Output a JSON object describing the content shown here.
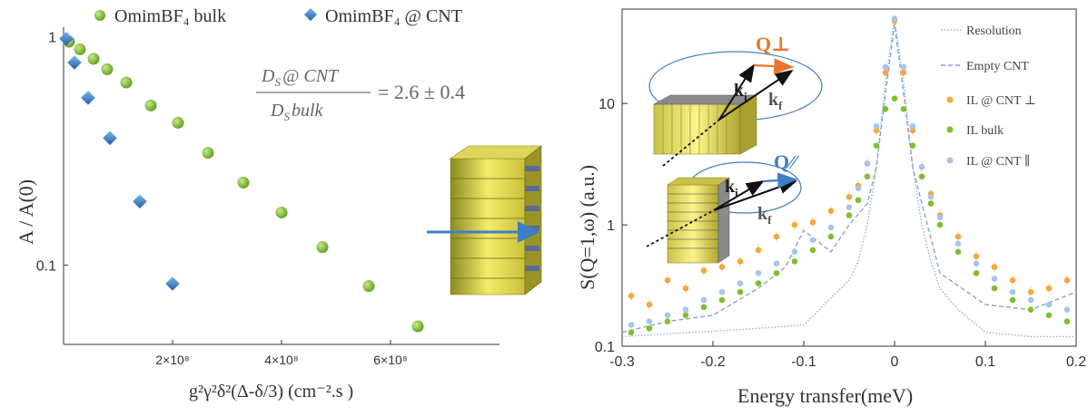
{
  "colors": {
    "bulk": "#7fbf2e",
    "cnt": "#2d7ac4",
    "perp": "#f2a93b",
    "par": "#a7c4ec",
    "resolution": "#9aaed4",
    "empty": "#8da2cf",
    "orange_arrow": "#e8762d",
    "blue_arrow": "#3f7ec4",
    "text_grey": "#555555"
  },
  "chart_data": [
    {
      "type": "scatter",
      "title": "",
      "xlabel": "g²γ²δ²(Δ-δ/3) (cm⁻².s )",
      "ylabel": "A / A(0)",
      "yscale": "log",
      "xlim": [
        0,
        800000000
      ],
      "ylim": [
        0.045,
        1.1
      ],
      "xticks": [
        200000000,
        400000000,
        600000000
      ],
      "xtick_labels": [
        "2×10⁸",
        "4×10⁸",
        "6×10⁸"
      ],
      "yticks": [
        1,
        0.1
      ],
      "ytick_labels": [
        "1",
        "0.1"
      ],
      "legend_position": "top",
      "series": [
        {
          "name": "OmimBF₄ bulk",
          "marker": "circle",
          "x": [
            10000000,
            30000000,
            55000000,
            80000000,
            115000000,
            160000000,
            210000000,
            265000000,
            330000000,
            400000000,
            475000000,
            560000000,
            650000000
          ],
          "y": [
            0.95,
            0.88,
            0.8,
            0.72,
            0.63,
            0.5,
            0.42,
            0.31,
            0.23,
            0.17,
            0.12,
            0.081,
            0.054
          ]
        },
        {
          "name": "OmimBF₄ @ CNT",
          "marker": "diamond",
          "x": [
            5000000,
            20000000,
            45000000,
            85000000,
            140000000,
            200000000
          ],
          "y": [
            0.98,
            0.77,
            0.54,
            0.36,
            0.19,
            0.083
          ]
        }
      ],
      "annotation": {
        "numerator_main": "D",
        "numerator_sub": "S",
        "numerator_rest": "@ CNT",
        "denominator_main": "D",
        "denominator_sub": "S",
        "denominator_rest": "bulk",
        "value": "= 2.6  ± 0.4"
      }
    },
    {
      "type": "line",
      "title": "",
      "xlabel": "Energy transfer(meV)",
      "ylabel": "S(Q=1,ω) (a.u.)",
      "yscale": "log",
      "xlim": [
        -0.3,
        0.2
      ],
      "ylim": [
        0.1,
        60
      ],
      "xticks": [
        -0.3,
        -0.2,
        -0.1,
        0,
        0.1,
        0.2
      ],
      "xtick_labels": [
        "-0.3",
        "-0.2",
        "-0.1",
        "0",
        "0.1",
        "0.2"
      ],
      "yticks": [
        0.1,
        1,
        10
      ],
      "ytick_labels": [
        "0.1",
        "1",
        "10"
      ],
      "legend_position": "top-right",
      "series": [
        {
          "name": "Resolution",
          "style": "dotted",
          "x": [
            -0.3,
            -0.15,
            -0.1,
            -0.07,
            -0.05,
            -0.04,
            -0.03,
            -0.02,
            -0.01,
            0,
            0.01,
            0.02,
            0.03,
            0.04,
            0.05,
            0.07,
            0.1,
            0.15,
            0.2
          ],
          "y": [
            0.12,
            0.14,
            0.15,
            0.25,
            0.35,
            0.5,
            1.0,
            3.0,
            15,
            50,
            15,
            3.0,
            1.0,
            0.5,
            0.3,
            0.2,
            0.13,
            0.12,
            0.12
          ]
        },
        {
          "name": "Empty CNT",
          "style": "dashed",
          "x": [
            -0.3,
            -0.25,
            -0.2,
            -0.15,
            -0.12,
            -0.1,
            -0.07,
            -0.05,
            -0.03,
            -0.02,
            -0.01,
            0,
            0.01,
            0.02,
            0.03,
            0.05,
            0.08,
            0.1,
            0.15,
            0.2
          ],
          "y": [
            0.13,
            0.16,
            0.18,
            0.3,
            0.45,
            0.9,
            0.6,
            1.0,
            1.5,
            3.0,
            12,
            45,
            12,
            3.0,
            1.5,
            0.4,
            0.28,
            0.22,
            0.2,
            0.28
          ]
        },
        {
          "name": "IL @ CNT ⊥",
          "marker": "circle",
          "x": [
            -0.29,
            -0.27,
            -0.25,
            -0.23,
            -0.21,
            -0.19,
            -0.17,
            -0.15,
            -0.13,
            -0.11,
            -0.09,
            -0.07,
            -0.05,
            -0.04,
            -0.03,
            -0.02,
            -0.01,
            0,
            0.01,
            0.02,
            0.03,
            0.04,
            0.05,
            0.07,
            0.09,
            0.11,
            0.13,
            0.15,
            0.17,
            0.19
          ],
          "y": [
            0.26,
            0.22,
            0.35,
            0.3,
            0.42,
            0.45,
            0.5,
            0.62,
            0.8,
            1.0,
            1.05,
            1.3,
            1.7,
            2.1,
            3.2,
            6.0,
            18,
            48,
            18,
            6.0,
            3.0,
            1.8,
            1.2,
            0.8,
            0.55,
            0.45,
            0.35,
            0.28,
            0.3,
            0.35
          ]
        },
        {
          "name": "IL bulk",
          "marker": "circle",
          "x": [
            -0.29,
            -0.27,
            -0.25,
            -0.23,
            -0.21,
            -0.19,
            -0.17,
            -0.15,
            -0.13,
            -0.11,
            -0.09,
            -0.07,
            -0.05,
            -0.04,
            -0.03,
            -0.02,
            -0.01,
            0,
            0.01,
            0.02,
            0.03,
            0.04,
            0.05,
            0.07,
            0.09,
            0.11,
            0.13,
            0.15,
            0.17,
            0.19
          ],
          "y": [
            0.13,
            0.14,
            0.16,
            0.18,
            0.21,
            0.24,
            0.28,
            0.33,
            0.4,
            0.5,
            0.62,
            0.8,
            1.2,
            1.6,
            2.5,
            4.5,
            9.0,
            11,
            9.0,
            4.5,
            2.5,
            1.5,
            1.0,
            0.6,
            0.4,
            0.3,
            0.24,
            0.2,
            0.18,
            0.16
          ]
        },
        {
          "name": "IL @ CNT ∥",
          "marker": "circle",
          "x": [
            -0.29,
            -0.27,
            -0.25,
            -0.23,
            -0.21,
            -0.19,
            -0.17,
            -0.15,
            -0.13,
            -0.11,
            -0.09,
            -0.07,
            -0.05,
            -0.04,
            -0.03,
            -0.02,
            -0.01,
            0,
            0.01,
            0.02,
            0.03,
            0.04,
            0.05,
            0.07,
            0.09,
            0.11,
            0.13,
            0.15,
            0.17,
            0.19
          ],
          "y": [
            0.15,
            0.16,
            0.18,
            0.2,
            0.24,
            0.28,
            0.33,
            0.4,
            0.48,
            0.6,
            0.75,
            0.95,
            1.4,
            2.0,
            3.2,
            6.5,
            20,
            50,
            20,
            6.5,
            3.0,
            1.7,
            1.15,
            0.7,
            0.48,
            0.36,
            0.28,
            0.24,
            0.22,
            0.2
          ]
        }
      ],
      "inset_labels": {
        "q_perp": "Q⊥",
        "q_par": "Q∕∕",
        "ki": "k",
        "ki_sub": "i",
        "kf": "k",
        "kf_sub": "f"
      }
    }
  ]
}
